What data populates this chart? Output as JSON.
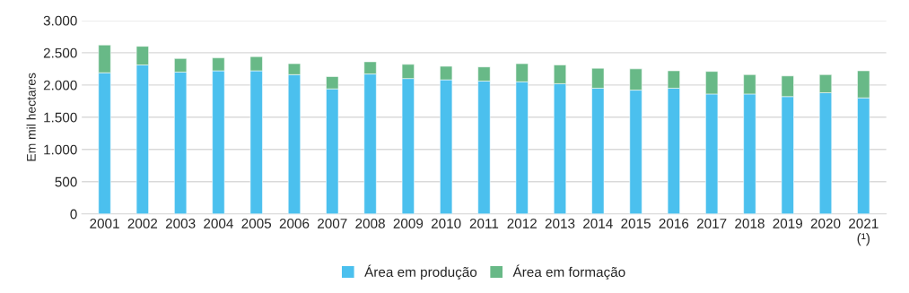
{
  "chart_data": {
    "type": "bar",
    "stacked": true,
    "ylabel": "Em mil hectares",
    "categories": [
      "2001",
      "2002",
      "2003",
      "2004",
      "2005",
      "2006",
      "2007",
      "2008",
      "2009",
      "2010",
      "2011",
      "2012",
      "2013",
      "2014",
      "2015",
      "2016",
      "2017",
      "2018",
      "2019",
      "2020",
      "2021\n(¹)"
    ],
    "series": [
      {
        "name": "Área em produção",
        "color": "#4bc0ee",
        "values": [
          2190,
          2310,
          2200,
          2220,
          2220,
          2160,
          1940,
          2170,
          2100,
          2080,
          2060,
          2050,
          2020,
          1950,
          1920,
          1950,
          1860,
          1860,
          1820,
          1880,
          1800
        ]
      },
      {
        "name": "Área em formação",
        "color": "#68b987",
        "values": [
          430,
          290,
          210,
          200,
          220,
          170,
          190,
          190,
          220,
          210,
          220,
          280,
          290,
          310,
          330,
          270,
          350,
          300,
          320,
          280,
          420
        ]
      }
    ],
    "ylim": [
      0,
      3000
    ],
    "yticks": [
      0,
      {
        "value": 500,
        "label": "500"
      },
      {
        "value": 1000,
        "label": "1.000"
      },
      {
        "value": 1500,
        "label": "1.500"
      },
      {
        "value": 2000,
        "label": "2.000"
      },
      {
        "value": 2500,
        "label": "2.500"
      },
      {
        "value": 3000,
        "label": "3.000"
      }
    ],
    "grid": "y",
    "legend": "bottom"
  }
}
